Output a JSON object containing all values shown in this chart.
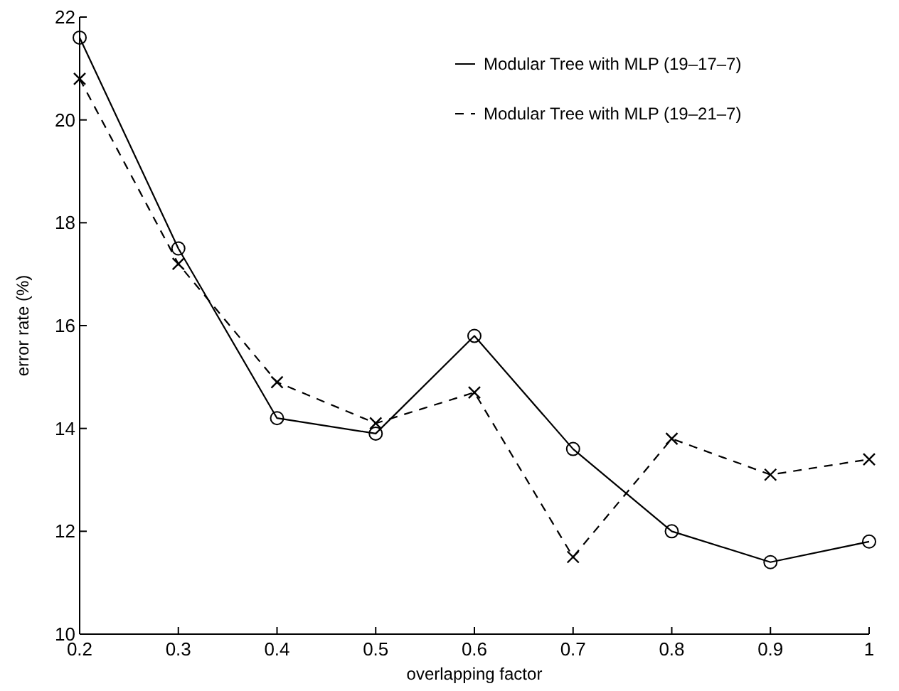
{
  "chart_data": {
    "type": "line",
    "xlabel": "overlapping factor",
    "ylabel": "error rate (%)",
    "x": [
      0.2,
      0.3,
      0.4,
      0.5,
      0.6,
      0.7,
      0.8,
      0.9,
      1
    ],
    "xlim": [
      0.2,
      1
    ],
    "xticks": [
      0.2,
      0.3,
      0.4,
      0.5,
      0.6,
      0.7,
      0.8,
      0.9,
      1
    ],
    "ylim": [
      10,
      22
    ],
    "yticks": [
      10,
      12,
      14,
      16,
      18,
      20,
      22
    ],
    "grid": false,
    "legend": "top right",
    "series": [
      {
        "name": "Modular Tree with MLP (19–17–7)",
        "color": "#000000",
        "marker": "circle",
        "line_style": "solid",
        "values": [
          21.6,
          17.5,
          14.2,
          13.9,
          15.8,
          13.6,
          12.0,
          11.4,
          11.8
        ]
      },
      {
        "name": "Modular Tree with MLP (19–21–7)",
        "color": "#000000",
        "marker": "cross",
        "line_style": "dashed",
        "values": [
          20.8,
          17.2,
          14.9,
          14.1,
          14.7,
          11.5,
          13.8,
          13.1,
          13.4
        ]
      }
    ]
  }
}
